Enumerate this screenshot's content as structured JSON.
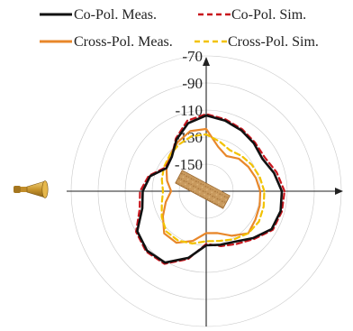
{
  "chart_data": {
    "type": "polar",
    "radial_unit": "dB",
    "rlim": [
      -170,
      -70
    ],
    "radial_ticks": [
      {
        "value": -70,
        "label": "-70"
      },
      {
        "value": -90,
        "label": "-90"
      },
      {
        "value": -110,
        "label": "-110"
      },
      {
        "value": -130,
        "label": "-130"
      },
      {
        "value": -150,
        "label": "-150"
      }
    ],
    "legend_placement": "top",
    "angle_deg": [
      0,
      15,
      30,
      45,
      60,
      75,
      90,
      105,
      120,
      135,
      150,
      165,
      180,
      195,
      210,
      225,
      240,
      255,
      270,
      285,
      300,
      315,
      330,
      345,
      360
    ],
    "series": [
      {
        "name": "Co-Pol. Meas.",
        "color": "#111111",
        "line_style": "solid",
        "values": [
          -114,
          -118,
          -122,
          -120,
          -118,
          -116,
          -114,
          -118,
          -126,
          -134,
          -136,
          -127,
          -123,
          -121,
          -111,
          -108,
          -109,
          -119,
          -130,
          -129,
          -127,
          -121,
          -114,
          -113,
          -114
        ]
      },
      {
        "name": "Co-Pol. Sim.",
        "color": "#c8161d",
        "line_style": "dashed",
        "values": [
          -112,
          -116,
          -120,
          -119,
          -117,
          -115,
          -113,
          -116,
          -125,
          -134,
          -135,
          -126,
          -121,
          -119,
          -110,
          -107,
          -108,
          -118,
          -131,
          -128,
          -125,
          -120,
          -113,
          -112,
          -112
        ]
      },
      {
        "name": "Cross-Pol. Meas.",
        "color": "#e8872a",
        "line_style": "solid",
        "values": [
          -130,
          -132,
          -134,
          -136,
          -140,
          -136,
          -124,
          -124,
          -128,
          -132,
          -136,
          -140,
          -144,
          -139,
          -133,
          -126,
          -126,
          -132,
          -139,
          -138,
          -132,
          -126,
          -128,
          -129,
          -130
        ]
      },
      {
        "name": "Cross-Pol. Sim.",
        "color": "#f2c200",
        "line_style": "dashed",
        "values": [
          -127,
          -129,
          -131,
          -133,
          -135,
          -132,
          -128,
          -128,
          -130,
          -132,
          -134,
          -136,
          -138,
          -136,
          -132,
          -128,
          -128,
          -130,
          -133,
          -132,
          -129,
          -126,
          -125,
          -126,
          -127
        ]
      }
    ]
  },
  "legend": {
    "co_meas": "Co-Pol. Meas.",
    "co_sim": "Co-Pol. Sim.",
    "cross_meas": "Cross-Pol. Meas.",
    "cross_sim": "Cross-Pol. Sim."
  },
  "illustrations": {
    "horn_antenna": "horn-antenna-icon",
    "sample_board": "sample-board-icon"
  }
}
